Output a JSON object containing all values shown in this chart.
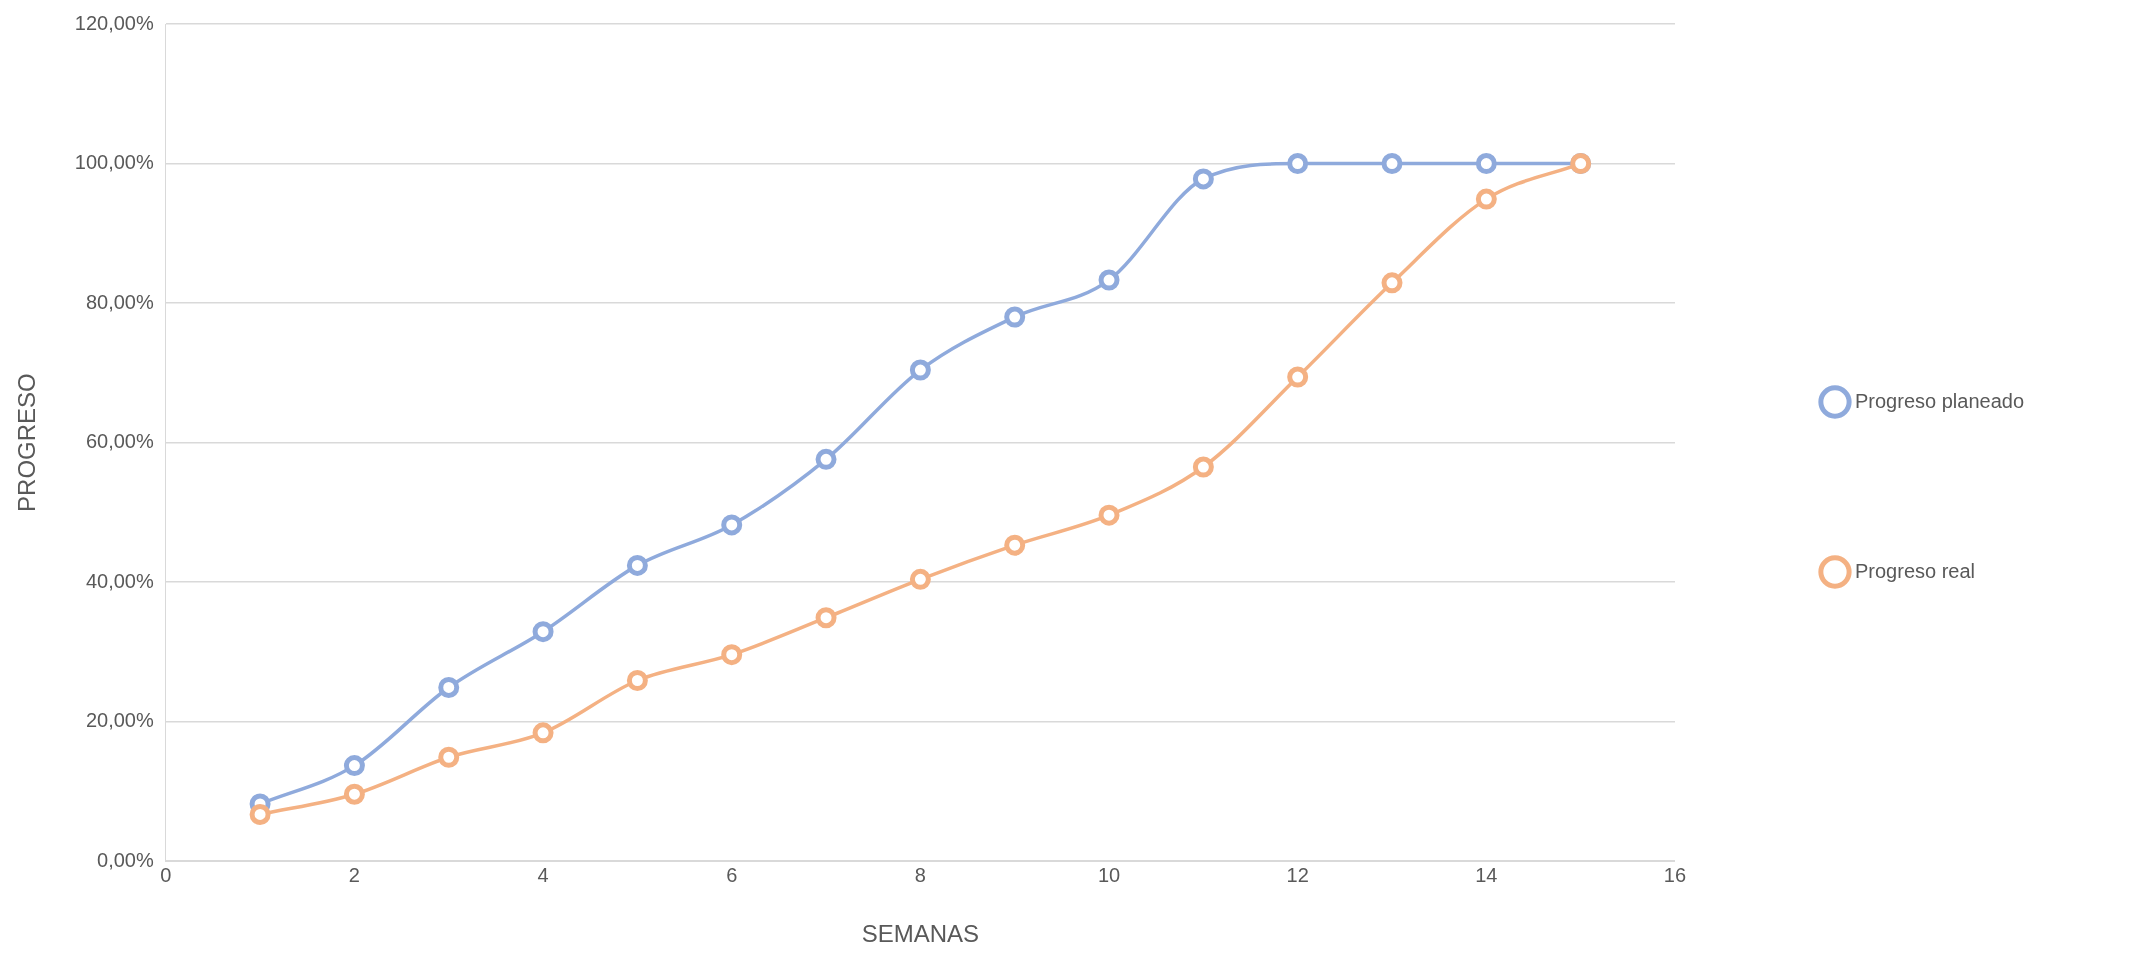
{
  "chart_data": {
    "type": "line",
    "xlabel": "SEMANAS",
    "ylabel": "PROGRESO",
    "x": [
      1,
      2,
      3,
      4,
      5,
      6,
      7,
      8,
      9,
      10,
      11,
      12,
      13,
      14,
      15
    ],
    "series": [
      {
        "name": "Progreso planeado",
        "color": "#8faadc",
        "values": [
          8.2,
          13.7,
          24.9,
          32.9,
          42.4,
          48.2,
          57.6,
          70.4,
          78.0,
          83.3,
          97.8,
          100,
          100,
          100,
          100
        ]
      },
      {
        "name": "Progreso real",
        "color": "#f4b183",
        "values": [
          6.7,
          9.6,
          14.9,
          18.4,
          25.9,
          29.6,
          34.9,
          40.4,
          45.3,
          49.6,
          56.5,
          69.4,
          82.9,
          94.9,
          100
        ]
      }
    ],
    "xlim": [
      0,
      16
    ],
    "xticks": [
      0,
      2,
      4,
      6,
      8,
      10,
      12,
      14,
      16
    ],
    "ylim": [
      0,
      120
    ],
    "yticks": [
      {
        "value": 0,
        "label": "0,00%"
      },
      {
        "value": 20,
        "label": "20,00%"
      },
      {
        "value": 40,
        "label": "40,00%"
      },
      {
        "value": 60,
        "label": "60,00%"
      },
      {
        "value": 80,
        "label": "80,00%"
      },
      {
        "value": 100,
        "label": "100,00%"
      },
      {
        "value": 120,
        "label": "120,00%"
      }
    ],
    "grid": "y",
    "legend": "right",
    "marker": "circle",
    "line_style": "solid"
  }
}
